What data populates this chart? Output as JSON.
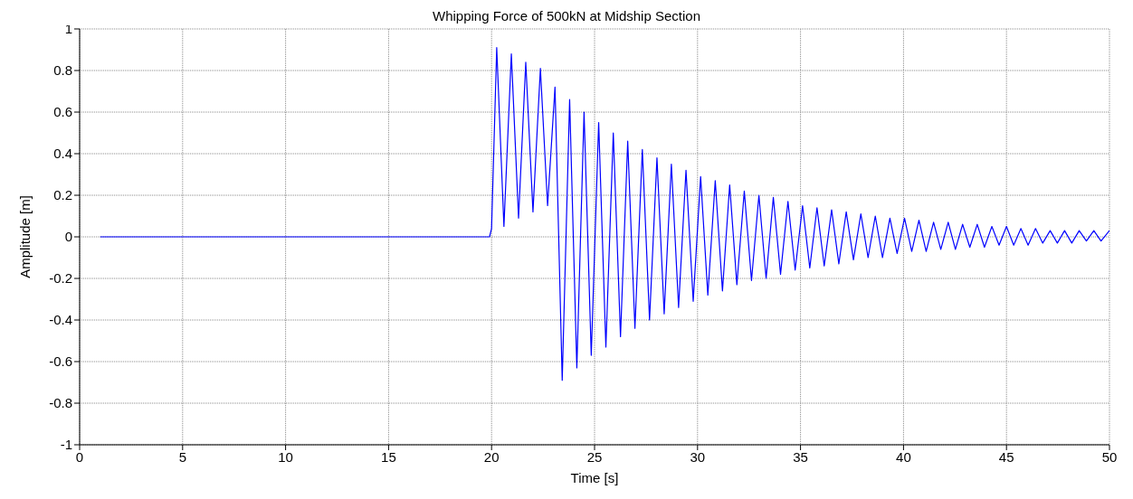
{
  "chart_data": {
    "type": "line",
    "title": "Whipping Force of 500kN at Midship Section",
    "xlabel": "Time [s]",
    "ylabel": "Amplitude [m]",
    "x": [
      1,
      19.9,
      20.0,
      20.25,
      20.6,
      20.96,
      21.31,
      21.66,
      22.01,
      22.37,
      22.72,
      23.08,
      23.43,
      23.79,
      24.14,
      24.49,
      24.84,
      25.2,
      25.55,
      25.91,
      26.26,
      26.61,
      26.96,
      27.32,
      27.67,
      28.03,
      28.38,
      28.73,
      29.08,
      29.44,
      29.79,
      30.15,
      30.5,
      30.86,
      31.21,
      31.56,
      31.91,
      32.27,
      32.62,
      32.98,
      33.33,
      33.68,
      34.03,
      34.39,
      34.74,
      35.1,
      35.45,
      35.8,
      36.15,
      36.51,
      36.86,
      37.22,
      37.57,
      37.93,
      38.28,
      38.63,
      38.98,
      39.34,
      39.69,
      40.05,
      40.4,
      40.75,
      41.1,
      41.46,
      41.81,
      42.17,
      42.52,
      42.87,
      43.22,
      43.58,
      43.93,
      44.29,
      44.64,
      45.0,
      45.35,
      45.7,
      46.05,
      46.41,
      46.76,
      47.12,
      47.47,
      47.82,
      48.17,
      48.53,
      48.88,
      49.24,
      49.59,
      50
    ],
    "values": [
      0,
      0,
      0.04,
      0.91,
      0.05,
      0.88,
      0.09,
      0.84,
      0.12,
      0.81,
      0.15,
      0.72,
      -0.69,
      0.66,
      -0.63,
      0.6,
      -0.57,
      0.55,
      -0.53,
      0.5,
      -0.48,
      0.46,
      -0.44,
      0.42,
      -0.4,
      0.38,
      -0.37,
      0.35,
      -0.34,
      0.32,
      -0.31,
      0.29,
      -0.28,
      0.27,
      -0.26,
      0.25,
      -0.23,
      0.22,
      -0.21,
      0.2,
      -0.2,
      0.19,
      -0.18,
      0.17,
      -0.16,
      0.15,
      -0.15,
      0.14,
      -0.14,
      0.13,
      -0.13,
      0.12,
      -0.11,
      0.11,
      -0.1,
      0.1,
      -0.1,
      0.09,
      -0.08,
      0.09,
      -0.07,
      0.08,
      -0.07,
      0.07,
      -0.06,
      0.07,
      -0.06,
      0.06,
      -0.05,
      0.06,
      -0.05,
      0.05,
      -0.04,
      0.05,
      -0.04,
      0.04,
      -0.04,
      0.04,
      -0.03,
      0.03,
      -0.03,
      0.03,
      -0.03,
      0.03,
      -0.02,
      0.03,
      -0.02,
      0.03
    ],
    "color": "#0000ff",
    "xlim": [
      0,
      50
    ],
    "xticks": [
      0,
      5,
      10,
      15,
      20,
      25,
      30,
      35,
      40,
      45,
      50
    ],
    "ylim": [
      -1,
      1
    ],
    "yticks": [
      -1,
      -0.8,
      -0.6,
      -0.4,
      -0.2,
      0,
      0.2,
      0.4,
      0.6,
      0.8,
      1
    ],
    "grid": true,
    "marker": "none",
    "line_style": "solid"
  }
}
